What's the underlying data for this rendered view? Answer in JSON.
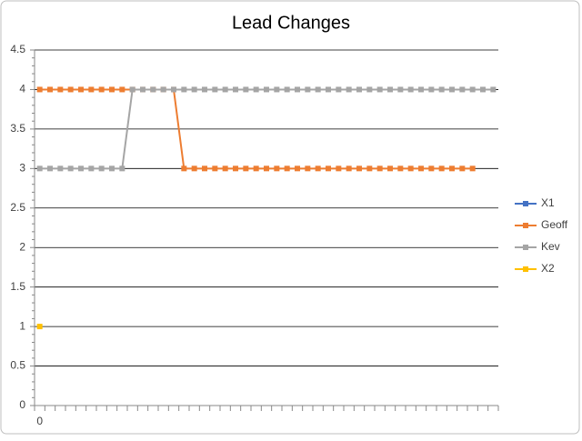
{
  "chart_data": {
    "type": "line",
    "title": "Lead Changes",
    "categories": [
      "0",
      null,
      null,
      null,
      null,
      null,
      null,
      null,
      null,
      null,
      null,
      null,
      null,
      null,
      null,
      null,
      null,
      null,
      null,
      null,
      null,
      null,
      null,
      null,
      null,
      null,
      null,
      null,
      null,
      null,
      null,
      null,
      null,
      null,
      null,
      null,
      null,
      null,
      null,
      null,
      null,
      null,
      null,
      null,
      null
    ],
    "series": [
      {
        "name": "X1",
        "color": "#4472c4",
        "values": [
          null,
          null,
          null,
          null,
          null,
          null,
          null,
          null,
          null,
          null,
          null,
          null,
          null,
          null,
          null,
          null,
          null,
          null,
          null,
          null,
          null,
          null,
          null,
          null,
          null,
          null,
          null,
          null,
          null,
          null,
          null,
          null,
          null,
          null,
          null,
          null,
          null,
          null,
          null,
          null,
          null,
          null,
          null,
          null,
          null
        ]
      },
      {
        "name": "Geoff",
        "color": "#ed7d31",
        "values": [
          4,
          4,
          4,
          4,
          4,
          4,
          4,
          4,
          4,
          4,
          4,
          4,
          4,
          4,
          3,
          3,
          3,
          3,
          3,
          3,
          3,
          3,
          3,
          3,
          3,
          3,
          3,
          3,
          3,
          3,
          3,
          3,
          3,
          3,
          3,
          3,
          3,
          3,
          3,
          3,
          3,
          3,
          3,
          null,
          null
        ]
      },
      {
        "name": "Kev",
        "color": "#a5a5a5",
        "values": [
          3,
          3,
          3,
          3,
          3,
          3,
          3,
          3,
          3,
          4,
          4,
          4,
          4,
          4,
          4,
          4,
          4,
          4,
          4,
          4,
          4,
          4,
          4,
          4,
          4,
          4,
          4,
          4,
          4,
          4,
          4,
          4,
          4,
          4,
          4,
          4,
          4,
          4,
          4,
          4,
          4,
          4,
          4,
          4,
          4
        ]
      },
      {
        "name": "X2",
        "color": "#ffc000",
        "values": [
          1,
          null,
          null,
          null,
          null,
          null,
          null,
          null,
          null,
          null,
          null,
          null,
          null,
          null,
          null,
          null,
          null,
          null,
          null,
          null,
          null,
          null,
          null,
          null,
          null,
          null,
          null,
          null,
          null,
          null,
          null,
          null,
          null,
          null,
          null,
          null,
          null,
          null,
          null,
          null,
          null,
          null,
          null,
          null,
          null
        ]
      }
    ],
    "ylim": [
      0,
      4.5
    ],
    "yticks": [
      0,
      0.5,
      1,
      1.5,
      2,
      2.5,
      3,
      3.5,
      4,
      4.5
    ],
    "grid": true,
    "legend": "right"
  }
}
